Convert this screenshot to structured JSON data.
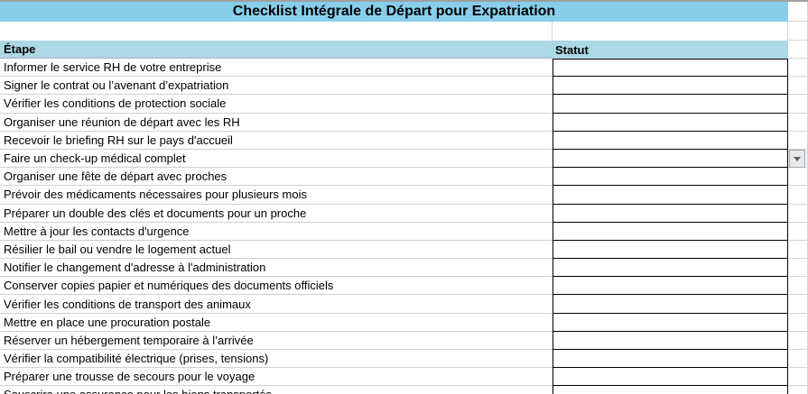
{
  "title": "Checklist Intégrale de Départ pour Expatriation",
  "columns": {
    "etape": "Étape",
    "statut": "Statut"
  },
  "rows": [
    {
      "etape": "Informer le service RH de votre entreprise",
      "statut": ""
    },
    {
      "etape": "Signer le contrat ou l’avenant d’expatriation",
      "statut": ""
    },
    {
      "etape": "Vérifier les conditions de protection sociale",
      "statut": ""
    },
    {
      "etape": "Organiser une réunion de départ avec les RH",
      "statut": ""
    },
    {
      "etape": "Recevoir le briefing RH sur le pays d'accueil",
      "statut": ""
    },
    {
      "etape": "Faire un check-up médical complet",
      "statut": ""
    },
    {
      "etape": "Organiser une fête de départ avec proches",
      "statut": ""
    },
    {
      "etape": "Prévoir des médicaments nécessaires pour plusieurs mois",
      "statut": ""
    },
    {
      "etape": "Préparer un double des clés et documents pour un proche",
      "statut": ""
    },
    {
      "etape": "Mettre à jour les contacts d'urgence",
      "statut": ""
    },
    {
      "etape": "Résilier le bail ou vendre le logement actuel",
      "statut": ""
    },
    {
      "etape": "Notifier le changement d'adresse à l'administration",
      "statut": ""
    },
    {
      "etape": "Conserver copies papier et numériques des documents officiels",
      "statut": ""
    },
    {
      "etape": "Vérifier les conditions de transport des animaux",
      "statut": ""
    },
    {
      "etape": "Mettre en place une procuration postale",
      "statut": ""
    },
    {
      "etape": "Réserver un hébergement temporaire à l’arrivée",
      "statut": ""
    },
    {
      "etape": "Vérifier la compatibilité électrique (prises, tensions)",
      "statut": ""
    },
    {
      "etape": "Préparer une trousse de secours pour le voyage",
      "statut": ""
    },
    {
      "etape": "Souscrire une assurance pour les biens transportés",
      "statut": ""
    }
  ],
  "dropdown": {
    "attached_row_index": 5,
    "icon": "dropdown-arrow-icon"
  },
  "colors": {
    "title_bg": "#87CEEB",
    "header_bg": "#ADD8E6",
    "gridline": "#D4D4D4",
    "cell_border": "#000000",
    "dropdown_bg": "#E7EAED",
    "dropdown_border": "#9FA6AC",
    "dropdown_arrow": "#5A5F64"
  }
}
